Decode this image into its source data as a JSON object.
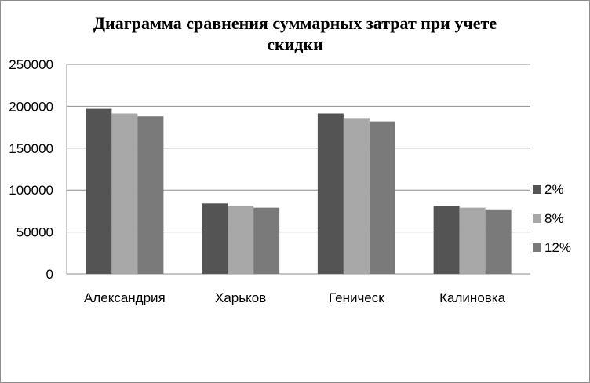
{
  "chart_data": {
    "type": "bar",
    "title_line1": "Диаграмма сравнения суммарных затрат при учете",
    "title_line2": "скидки",
    "categories": [
      "Александрия",
      "Харьков",
      "Геническ",
      "Калиновка"
    ],
    "series": [
      {
        "name": "2%",
        "values": [
          197000,
          84000,
          191500,
          81000
        ],
        "color": "#545454"
      },
      {
        "name": "8%",
        "values": [
          191500,
          81000,
          186000,
          79000
        ],
        "color": "#a8a8a8"
      },
      {
        "name": "12%",
        "values": [
          188000,
          79000,
          182000,
          77000
        ],
        "color": "#7a7a7a"
      }
    ],
    "yticks": [
      "0",
      "50000",
      "100000",
      "150000",
      "200000",
      "250000"
    ],
    "ylim": [
      0,
      250000
    ],
    "grid": true,
    "legend_position": "right"
  }
}
